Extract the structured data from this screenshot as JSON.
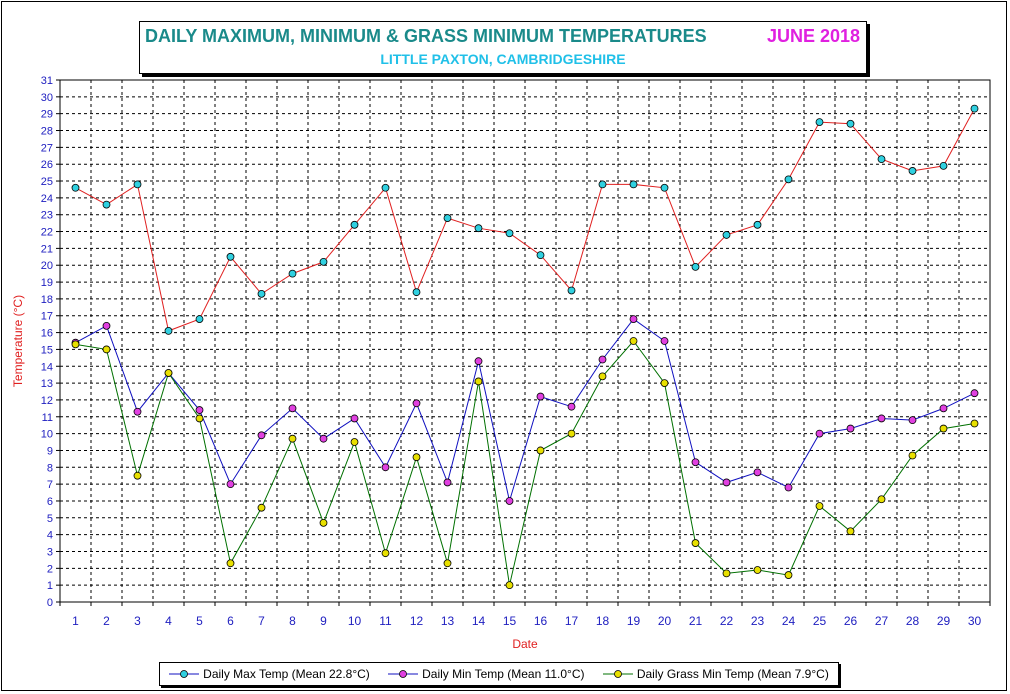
{
  "chart_data": {
    "type": "line",
    "title": "DAILY MAXIMUM, MINIMUM & GRASS MINIMUM TEMPERATURES",
    "period": "JUNE 2018",
    "subtitle": "LITTLE PAXTON, CAMBRIDGESHIRE",
    "xlabel": "Date",
    "ylabel": "Temperature (°C)",
    "ylim": [
      0,
      31
    ],
    "grid": true,
    "legend_position": "bottom",
    "x": [
      1,
      2,
      3,
      4,
      5,
      6,
      7,
      8,
      9,
      10,
      11,
      12,
      13,
      14,
      15,
      16,
      17,
      18,
      19,
      20,
      21,
      22,
      23,
      24,
      25,
      26,
      27,
      28,
      29,
      30
    ],
    "series": [
      {
        "name": "Daily Max Temp (Mean 22.8°C)",
        "line_color": "#e02020",
        "marker_color": "#30d0e0",
        "values": [
          24.6,
          23.6,
          24.8,
          16.1,
          16.8,
          20.5,
          18.3,
          19.5,
          20.2,
          22.4,
          24.6,
          18.4,
          22.8,
          22.2,
          21.9,
          20.6,
          18.5,
          24.8,
          24.8,
          24.6,
          19.9,
          21.8,
          22.4,
          25.1,
          28.5,
          28.4,
          26.3,
          25.6,
          25.9,
          29.3
        ]
      },
      {
        "name": "Daily Min Temp (Mean 11.0°C)",
        "line_color": "#1010c0",
        "marker_color": "#e040e0",
        "values": [
          15.4,
          16.4,
          11.3,
          13.6,
          11.4,
          7.0,
          9.9,
          11.5,
          9.7,
          10.9,
          8.0,
          11.8,
          7.1,
          14.3,
          6.0,
          12.2,
          11.6,
          14.4,
          16.8,
          15.5,
          8.3,
          7.1,
          7.7,
          6.8,
          10.0,
          10.3,
          10.9,
          10.8,
          11.5,
          12.4
        ]
      },
      {
        "name": "Daily Grass Min Temp (Mean 7.9°C)",
        "line_color": "#007000",
        "marker_color": "#e8e000",
        "values": [
          15.3,
          15.0,
          7.5,
          13.6,
          10.9,
          2.3,
          5.6,
          9.7,
          4.7,
          9.5,
          2.9,
          8.6,
          2.3,
          13.1,
          1.0,
          9.0,
          10.0,
          13.4,
          15.5,
          13.0,
          3.5,
          1.7,
          1.9,
          1.6,
          5.7,
          4.2,
          6.1,
          8.7,
          10.3,
          10.6
        ]
      }
    ]
  },
  "colors": {
    "title": "#1a8a8a",
    "period": "#e020e0",
    "subtitle": "#20c0e8",
    "tick_labels": "#2020c0",
    "axis_titles": "#e02020"
  }
}
